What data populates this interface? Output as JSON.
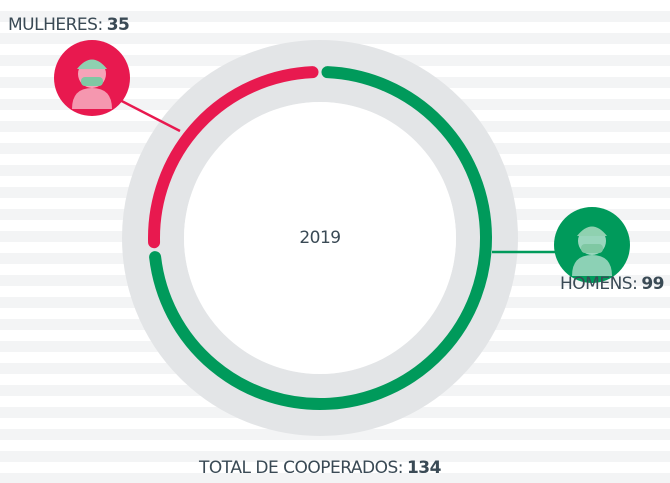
{
  "chart_data": {
    "type": "donut",
    "center_label": "2019",
    "series": [
      {
        "name": "MULHERES:",
        "color": "#e8194f",
        "values": [
          35
        ]
      },
      {
        "name": "HOMENS:",
        "color": "#009a5b",
        "values": [
          99
        ]
      }
    ],
    "total_label": "TOTAL DE COOPERADOS:",
    "total": 134
  }
}
